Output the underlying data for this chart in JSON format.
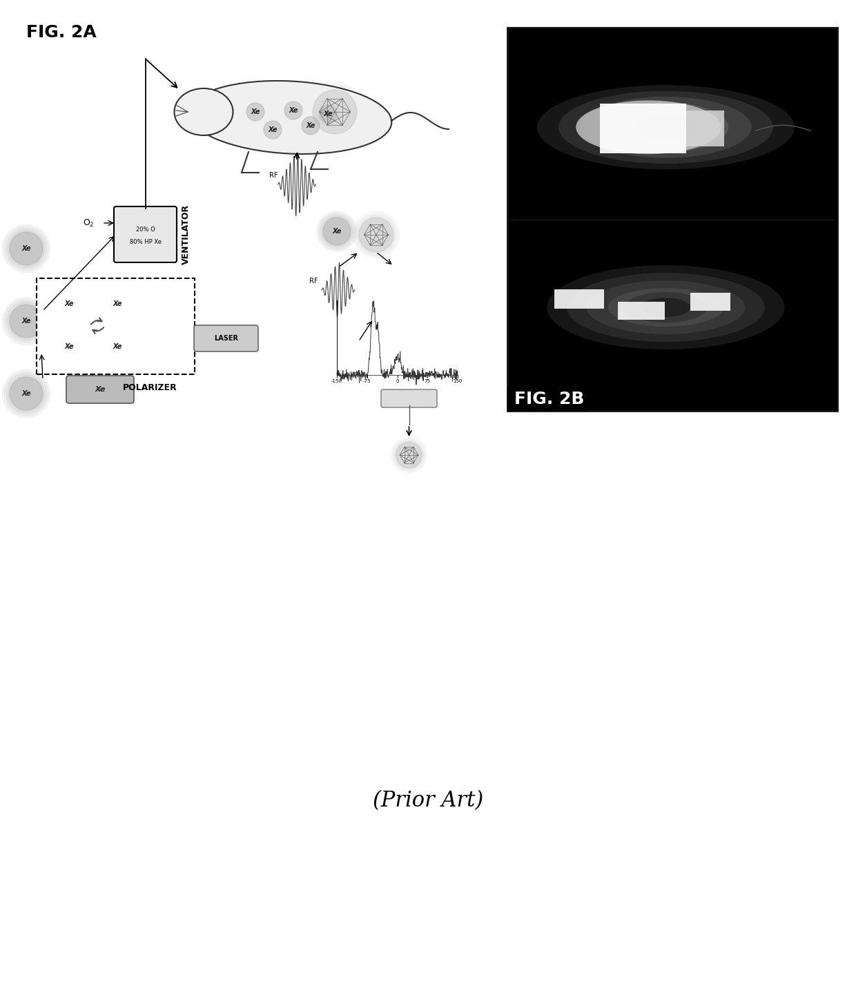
{
  "fig_label_2a": "FIG. 2A",
  "fig_label_2b": "FIG. 2B",
  "prior_art_text": "(Prior Art)",
  "background_color": "#ffffff",
  "title_fontsize": 18,
  "prior_art_fontsize": 22
}
